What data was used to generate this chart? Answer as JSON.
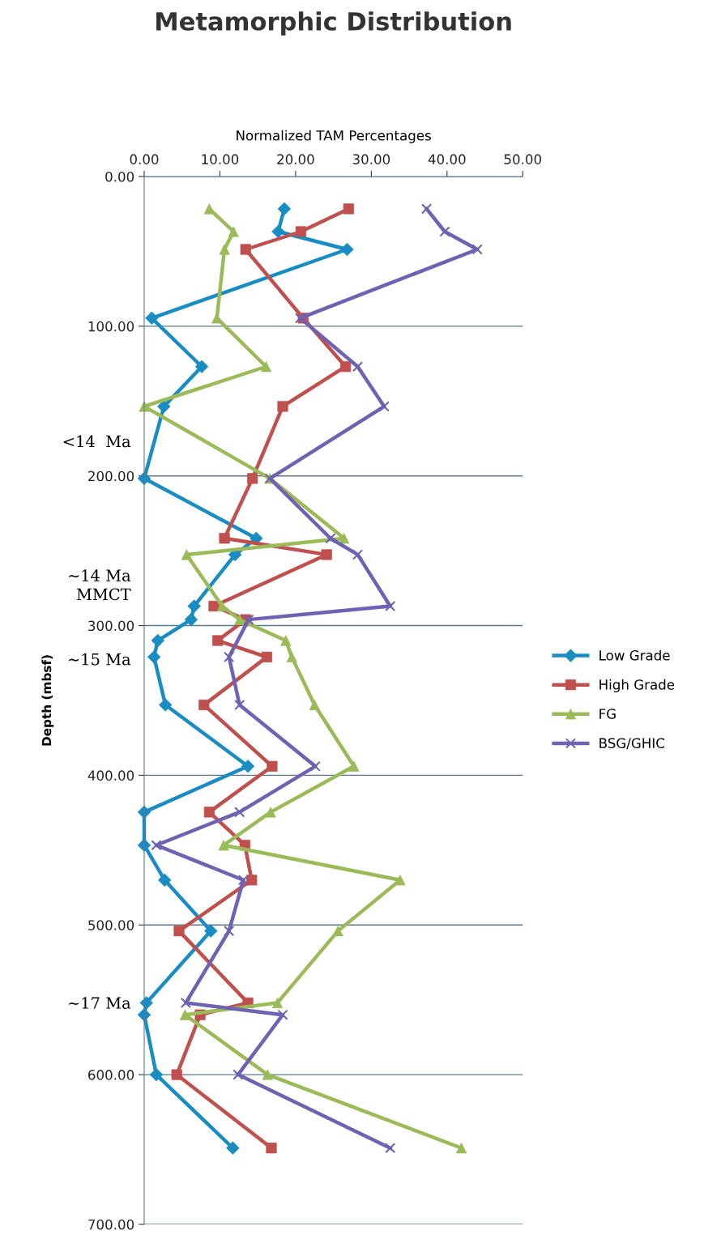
{
  "chart_data": {
    "type": "line",
    "orientation": "horizontal",
    "title": "Metamorphic Distribution",
    "xlabel": "Normalized TAM Percentages",
    "ylabel": "Depth (mbsf)",
    "x": [
      21.6,
      36.8,
      48.7,
      94.6,
      127,
      153.6,
      201.7,
      241.7,
      252.6,
      287,
      296,
      310,
      321,
      353,
      394,
      424.6,
      446.7,
      470,
      504,
      552,
      560,
      600,
      649
    ],
    "series": [
      {
        "name": "Low Grade",
        "color": "#1a8cc4",
        "marker": "diamond",
        "values": [
          18.5,
          17.7,
          26.8,
          1.0,
          7.6,
          2.6,
          0,
          14.8,
          12.0,
          6.6,
          6.2,
          1.8,
          1.3,
          2.8,
          13.7,
          0,
          0,
          2.7,
          8.8,
          0.3,
          0,
          1.6,
          11.7
        ]
      },
      {
        "name": "High Grade",
        "color": "#c0504d",
        "marker": "square",
        "values": [
          27.0,
          20.7,
          13.4,
          21.0,
          26.6,
          18.3,
          14.3,
          10.6,
          24.1,
          9.2,
          13.4,
          9.7,
          16.2,
          7.9,
          16.9,
          8.6,
          13.3,
          14.2,
          4.6,
          13.7,
          7.4,
          4.3,
          16.8
        ]
      },
      {
        "name": "FG",
        "color": "#9bbb59",
        "marker": "triangle",
        "values": [
          8.6,
          11.8,
          10.6,
          9.6,
          16.1,
          0,
          16.6,
          26.4,
          5.6,
          10.3,
          12.6,
          18.7,
          19.5,
          22.5,
          27.7,
          16.7,
          10.5,
          33.8,
          25.6,
          17.6,
          5.4,
          16.3,
          41.9
        ]
      },
      {
        "name": "BSG/GHIC",
        "color": "#6f62b2",
        "marker": "cross",
        "x": [
          21.6,
          36.8,
          48.7,
          94.6,
          127,
          153.6,
          201.7,
          241.7,
          252.6,
          287,
          296,
          321,
          353,
          394,
          424.6,
          446.7,
          470,
          504,
          552,
          560,
          600,
          649
        ],
        "values": [
          37.3,
          39.7,
          44.0,
          20.6,
          28.2,
          31.7,
          16.6,
          24.6,
          28.2,
          32.5,
          13.8,
          11.2,
          12.6,
          22.6,
          12.6,
          1.6,
          13.1,
          11.2,
          5.5,
          18.3,
          12.4,
          32.5
        ]
      }
    ],
    "xlim": [
      0,
      50
    ],
    "xticks": [
      {
        "value": 0,
        "label": "0.00"
      },
      {
        "value": 10,
        "label": "10.00"
      },
      {
        "value": 20,
        "label": "20.00"
      },
      {
        "value": 30,
        "label": "30.00"
      },
      {
        "value": 40,
        "label": "40.00"
      },
      {
        "value": 50,
        "label": "50.00"
      }
    ],
    "ylim": [
      700,
      0
    ],
    "yticks": [
      {
        "value": 0,
        "label": "0.00"
      },
      {
        "value": 100,
        "label": "100.00"
      },
      {
        "value": 200,
        "label": "200.00"
      },
      {
        "value": 300,
        "label": "300.00"
      },
      {
        "value": 400,
        "label": "400.00"
      },
      {
        "value": 500,
        "label": "500.00"
      },
      {
        "value": 600,
        "label": "600.00"
      },
      {
        "value": 700,
        "label": "700.00"
      }
    ],
    "grid": "y",
    "legend": "right",
    "annotations": [
      "<14  Ma",
      "~14 Ma\nMMCT",
      "~15 Ma",
      "~17 Ma"
    ]
  }
}
